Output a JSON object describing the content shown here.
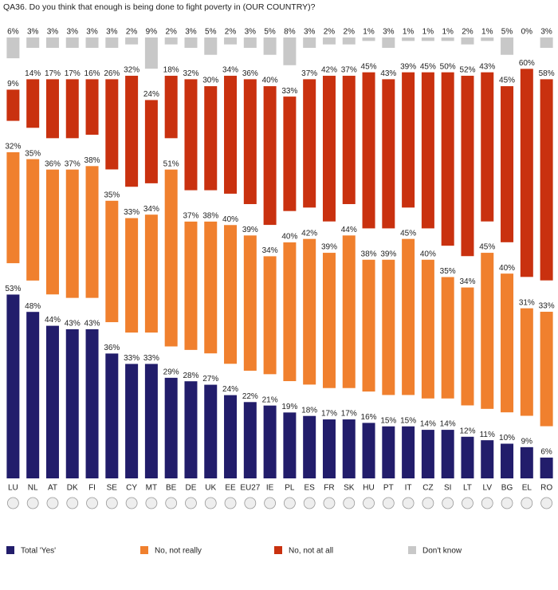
{
  "chart_data": {
    "type": "stacked_bar",
    "title": "QA36. Do you think that enough is being done to fight poverty in (OUR COUNTRY)?",
    "categories": [
      "LU",
      "NL",
      "AT",
      "DK",
      "FI",
      "SE",
      "CY",
      "MT",
      "BE",
      "DE",
      "UK",
      "EE",
      "EU27",
      "IE",
      "PL",
      "ES",
      "FR",
      "SK",
      "HU",
      "PT",
      "IT",
      "CZ",
      "SI",
      "LT",
      "LV",
      "BG",
      "EL",
      "RO"
    ],
    "series": [
      {
        "name": "Total 'Yes'",
        "color": "#221d6b",
        "values": [
          53,
          48,
          44,
          43,
          43,
          36,
          33,
          33,
          29,
          28,
          27,
          24,
          22,
          21,
          19,
          18,
          17,
          17,
          16,
          15,
          15,
          14,
          14,
          12,
          11,
          10,
          9,
          6
        ],
        "value_labels": [
          "53%",
          "48%",
          "44%",
          "43%",
          "43%",
          "36%",
          "33%",
          "33%",
          "29%",
          "28%",
          "27%",
          "24%",
          "22%",
          "21%",
          "19%",
          "18%",
          "17%",
          "17%",
          "16%",
          "15%",
          "15%",
          "14%",
          "14%",
          "12%",
          "11%",
          "10%",
          "9%",
          "6%"
        ]
      },
      {
        "name": "No, not really",
        "color": "#f0802e",
        "values": [
          32,
          35,
          36,
          37,
          38,
          35,
          33,
          34,
          51,
          37,
          38,
          40,
          39,
          34,
          40,
          42,
          39,
          44,
          38,
          39,
          45,
          40,
          35,
          34,
          45,
          40,
          31,
          33
        ],
        "value_labels": [
          "32%",
          "35%",
          "36%",
          "37%",
          "38%",
          "35%",
          "33%",
          "34%",
          "51%",
          "37%",
          "38%",
          "40%",
          "39%",
          "34%",
          "40%",
          "42%",
          "39%",
          "44%",
          "38%",
          "39%",
          "45%",
          "40%",
          "35%",
          "34%",
          "45%",
          "40%",
          "31%",
          "33%"
        ]
      },
      {
        "name": "No, not at all",
        "color": "#c9310f",
        "values": [
          9,
          14,
          17,
          17,
          16,
          26,
          32,
          24,
          18,
          32,
          30,
          34,
          36,
          40,
          33,
          37,
          42,
          37,
          45,
          43,
          39,
          45,
          50,
          52,
          43,
          45,
          60,
          58
        ],
        "value_labels": [
          "9%",
          "14%",
          "17%",
          "17%",
          "16%",
          "26%",
          "32%",
          "24%",
          "18%",
          "32%",
          "30%",
          "34%",
          "36%",
          "40%",
          "33%",
          "37%",
          "42%",
          "37%",
          "45%",
          "43%",
          "39%",
          "45%",
          "50%",
          "52%",
          "43%",
          "45%",
          "60%",
          "58%"
        ]
      },
      {
        "name": "Don't know",
        "color": "#c8c8c8",
        "values": [
          6,
          3,
          3,
          3,
          3,
          3,
          2,
          9,
          2,
          3,
          5,
          2,
          3,
          5,
          8,
          3,
          2,
          2,
          1,
          3,
          1,
          1,
          1,
          2,
          1,
          5,
          0,
          3
        ],
        "value_labels": [
          "6%",
          "3%",
          "3%",
          "3%",
          "3%",
          "3%",
          "2%",
          "9%",
          "2%",
          "3%",
          "5%",
          "2%",
          "3%",
          "5%",
          "8%",
          "3%",
          "2%",
          "2%",
          "1%",
          "3%",
          "1%",
          "1%",
          "1%",
          "2%",
          "1%",
          "5%",
          "0%",
          "3%"
        ]
      }
    ]
  }
}
